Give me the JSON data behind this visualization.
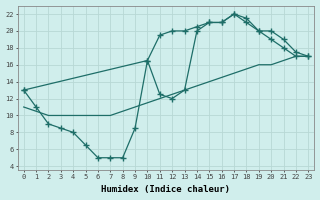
{
  "background_color": "#d0eeec",
  "grid_color": "#b8d8d5",
  "line_color": "#1e6e68",
  "line_width": 0.9,
  "marker": "+",
  "marker_size": 4,
  "marker_edge_width": 1.0,
  "xlabel": "Humidex (Indice chaleur)",
  "xlabel_fontsize": 6.5,
  "xlim": [
    -0.5,
    23.5
  ],
  "ylim": [
    3.5,
    23
  ],
  "yticks": [
    4,
    6,
    8,
    10,
    12,
    14,
    16,
    18,
    20,
    22
  ],
  "xticks": [
    0,
    1,
    2,
    3,
    4,
    5,
    6,
    7,
    8,
    9,
    10,
    11,
    12,
    13,
    14,
    15,
    16,
    17,
    18,
    19,
    20,
    21,
    22,
    23
  ],
  "tick_fontsize": 5.0,
  "line1_x": [
    0,
    1,
    2,
    3,
    4,
    5,
    6,
    7,
    8,
    9,
    10,
    11,
    12,
    13,
    14,
    15,
    16,
    17,
    18,
    19,
    20,
    21,
    22,
    23
  ],
  "line1_y": [
    13,
    11,
    9,
    8.5,
    8,
    6.5,
    5,
    5,
    5,
    8.5,
    16.5,
    12.5,
    12,
    13,
    20,
    21,
    21,
    22,
    21.5,
    20,
    19,
    18,
    17,
    17
  ],
  "line2_x": [
    0,
    10,
    11,
    12,
    13,
    14,
    15,
    16,
    17,
    18,
    19,
    20,
    21,
    22,
    23
  ],
  "line2_y": [
    13,
    16.5,
    19.5,
    20,
    20,
    20.5,
    21,
    21,
    22,
    21,
    20,
    20,
    19,
    17.5,
    17
  ],
  "line3_x": [
    0,
    1,
    2,
    3,
    4,
    5,
    6,
    7,
    8,
    9,
    10,
    11,
    12,
    13,
    14,
    15,
    16,
    17,
    18,
    19,
    20,
    21,
    22,
    23
  ],
  "line3_y": [
    11,
    10.5,
    10,
    10,
    10,
    10,
    10,
    10,
    10.5,
    11,
    11.5,
    12,
    12.5,
    13,
    13.5,
    14,
    14.5,
    15,
    15.5,
    16,
    16,
    16.5,
    17,
    17
  ]
}
